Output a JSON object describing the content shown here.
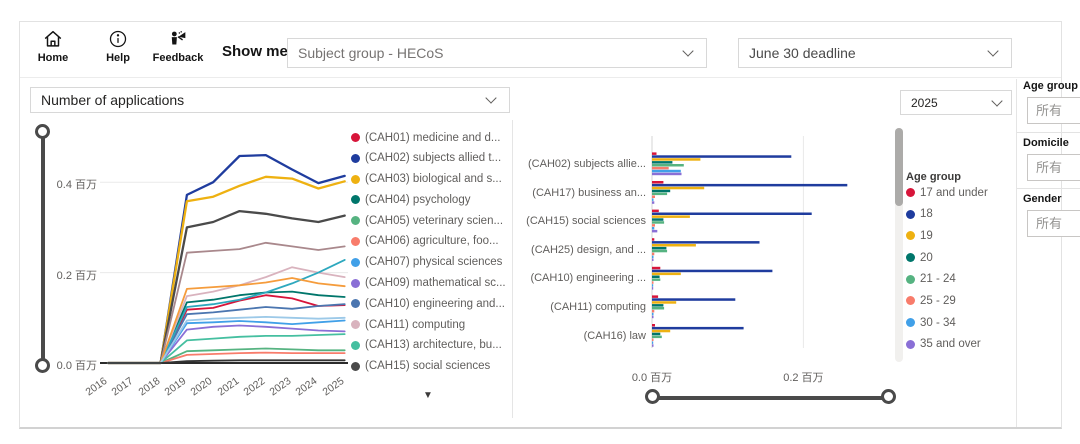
{
  "toolbar": {
    "home_label": "Home",
    "help_label": "Help",
    "feedback_label": "Feedback",
    "show_me": "Show me...",
    "subject_dropdown": "Subject group - HECoS",
    "deadline_dropdown": "June 30 deadline"
  },
  "left_visual": {
    "measure_dropdown": "Number of applications",
    "more_indicator": "▼"
  },
  "right_visual": {
    "year_dropdown": "2025",
    "age_legend_title": "Age group"
  },
  "filter_panel": {
    "groups": [
      {
        "label": "Age group",
        "value": "所有"
      },
      {
        "label": "Domicile",
        "value": "所有"
      },
      {
        "label": "Gender",
        "value": "所有"
      }
    ]
  },
  "chart_data": [
    {
      "type": "line",
      "title": "Number of applications",
      "x": [
        2016,
        2017,
        2018,
        2019,
        2020,
        2021,
        2022,
        2023,
        2024,
        2025
      ],
      "unit": "百万",
      "yticks": [
        {
          "value": 0.0,
          "label": "0.0 百万"
        },
        {
          "value": 0.2,
          "label": "0.2 百万"
        },
        {
          "value": 0.4,
          "label": "0.4 百万"
        }
      ],
      "ylim": [
        0,
        0.52
      ],
      "legend_position": "right",
      "grid": true,
      "series": [
        {
          "name": "(CAH01) medicine and d...",
          "color": "#D7153A",
          "in_legend": true,
          "values": [
            0,
            0,
            0,
            0.118,
            0.122,
            0.138,
            0.15,
            0.143,
            0.126,
            0.128
          ]
        },
        {
          "name": "(CAH02) subjects allied t...",
          "color": "#1F3C9E",
          "in_legend": true,
          "values": [
            0,
            0,
            0,
            0.372,
            0.4,
            0.458,
            0.46,
            0.428,
            0.398,
            0.414
          ]
        },
        {
          "name": "(CAH03) biological and s...",
          "color": "#EEB111",
          "in_legend": true,
          "values": [
            0,
            0,
            0,
            0.358,
            0.368,
            0.392,
            0.412,
            0.408,
            0.386,
            0.402
          ]
        },
        {
          "name": "(CAH04) psychology",
          "color": "#00766B",
          "in_legend": true,
          "values": [
            0,
            0,
            0,
            0.134,
            0.14,
            0.15,
            0.156,
            0.158,
            0.15,
            0.146
          ]
        },
        {
          "name": "(CAH05) veterinary scien...",
          "color": "#56B381",
          "in_legend": true,
          "values": [
            0,
            0,
            0,
            0.026,
            0.028,
            0.03,
            0.032,
            0.03,
            0.028,
            0.028
          ]
        },
        {
          "name": "(CAH06) agriculture, foo...",
          "color": "#F87C6B",
          "in_legend": true,
          "values": [
            0,
            0,
            0,
            0.018,
            0.02,
            0.022,
            0.023,
            0.022,
            0.022,
            0.022
          ]
        },
        {
          "name": "(CAH07) physical sciences",
          "color": "#41A0E8",
          "in_legend": true,
          "values": [
            0,
            0,
            0,
            0.088,
            0.09,
            0.093,
            0.09,
            0.086,
            0.09,
            0.094
          ]
        },
        {
          "name": "(CAH09) mathematical sc...",
          "color": "#8A6FD6",
          "in_legend": true,
          "values": [
            0,
            0,
            0,
            0.074,
            0.08,
            0.083,
            0.08,
            0.076,
            0.072,
            0.07
          ]
        },
        {
          "name": "(CAH10) engineering and...",
          "color": "#4B76B0",
          "in_legend": true,
          "values": [
            0,
            0,
            0,
            0.108,
            0.112,
            0.118,
            0.124,
            0.12,
            0.126,
            0.13
          ]
        },
        {
          "name": "(CAH11) computing",
          "color": "#D9B3BE",
          "in_legend": true,
          "values": [
            0,
            0,
            0,
            0.148,
            0.158,
            0.172,
            0.19,
            0.212,
            0.2,
            0.19
          ]
        },
        {
          "name": "(CAH13) architecture, bu...",
          "color": "#45BFA0",
          "in_legend": true,
          "values": [
            0,
            0,
            0,
            0.05,
            0.054,
            0.058,
            0.06,
            0.06,
            0.062,
            0.064
          ]
        },
        {
          "name": "(CAH15) social sciences",
          "color": "#4A4A4A",
          "in_legend": true,
          "values": [
            0,
            0,
            0,
            0.3,
            0.312,
            0.336,
            0.33,
            0.32,
            0.312,
            0.326
          ]
        },
        {
          "name": "unlabeled-1",
          "color": "#A9888C",
          "in_legend": false,
          "values": [
            0,
            0,
            0,
            0.244,
            0.248,
            0.252,
            0.266,
            0.258,
            0.25,
            0.258
          ]
        },
        {
          "name": "unlabeled-2",
          "color": "#2DA8BE",
          "in_legend": false,
          "values": [
            0,
            0,
            0,
            0.124,
            0.13,
            0.14,
            0.156,
            0.176,
            0.2,
            0.228
          ]
        },
        {
          "name": "unlabeled-3",
          "color": "#F59C3C",
          "in_legend": false,
          "values": [
            0,
            0,
            0,
            0.164,
            0.168,
            0.172,
            0.178,
            0.188,
            0.176,
            0.17
          ]
        },
        {
          "name": "unlabeled-4",
          "color": "#9CC9E8",
          "in_legend": false,
          "values": [
            0,
            0,
            0,
            0.094,
            0.098,
            0.1,
            0.102,
            0.1,
            0.098,
            0.1
          ]
        },
        {
          "name": "unlabeled-5",
          "color": "#333333",
          "in_legend": false,
          "values": [
            0,
            0,
            0,
            0.004,
            0.005,
            0.006,
            0.006,
            0.006,
            0.006,
            0.006
          ]
        }
      ]
    },
    {
      "type": "bar",
      "orientation": "horizontal",
      "year": "2025",
      "legend_title": "Age group",
      "legend_position": "right",
      "categories": [
        "(CAH02) subjects allie...",
        "(CAH17) business an...",
        "(CAH15) social sciences",
        "(CAH25) design, and ...",
        "(CAH10) engineering ...",
        "(CAH11) computing",
        "(CAH16) law"
      ],
      "unit": "百万",
      "xticks": [
        {
          "value": 0.0,
          "label": "0.0 百万"
        },
        {
          "value": 0.2,
          "label": "0.2 百万"
        }
      ],
      "xlim": [
        0,
        0.325
      ],
      "series": [
        {
          "name": "17 and under",
          "color": "#D7153A",
          "values": [
            0.006,
            0.015,
            0.009,
            0.003,
            0.011,
            0.008,
            0.004
          ]
        },
        {
          "name": "18",
          "color": "#1F3C9E",
          "values": [
            0.184,
            0.258,
            0.211,
            0.142,
            0.159,
            0.11,
            0.121
          ]
        },
        {
          "name": "19",
          "color": "#EEB111",
          "values": [
            0.064,
            0.069,
            0.05,
            0.058,
            0.038,
            0.032,
            0.024
          ]
        },
        {
          "name": "20",
          "color": "#00766B",
          "values": [
            0.027,
            0.024,
            0.015,
            0.019,
            0.01,
            0.015,
            0.011
          ]
        },
        {
          "name": "21 - 24",
          "color": "#56B381",
          "values": [
            0.042,
            0.02,
            0.016,
            0.02,
            0.011,
            0.016,
            0.013
          ]
        },
        {
          "name": "25 - 29",
          "color": "#F87C6B",
          "values": [
            0.022,
            0.004,
            0.004,
            0.003,
            0.002,
            0.003,
            0.002
          ]
        },
        {
          "name": "30 - 34",
          "color": "#41A0E8",
          "values": [
            0.038,
            0.002,
            0.003,
            0.002,
            0.001,
            0.002,
            0.001
          ]
        },
        {
          "name": "35 and over",
          "color": "#8A6FD6",
          "values": [
            0.039,
            0.003,
            0.007,
            0.002,
            0.001,
            0.002,
            0.002
          ]
        }
      ]
    }
  ]
}
